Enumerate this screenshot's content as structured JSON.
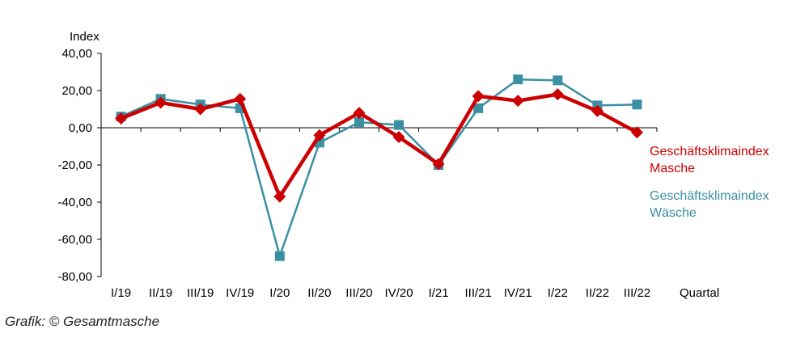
{
  "chart_data": {
    "type": "line",
    "ylabel": "Index",
    "xlabel": "Quartal",
    "ylim": [
      -80,
      40
    ],
    "yticks": [
      "40,00",
      "20,00",
      "0,00",
      "-20,00",
      "-40,00",
      "-60,00",
      "-80,00"
    ],
    "categories": [
      "I/19",
      "II/19",
      "III/19",
      "IV/19",
      "I/20",
      "II/20",
      "III/20",
      "IV/20",
      "I/21",
      "III/21",
      "IV/21",
      "I/22",
      "II/22",
      "III/22"
    ],
    "series": [
      {
        "name": "Geschäftsklimaindex Masche",
        "legend_lines": [
          "Geschäftsklimaindex",
          "Masche"
        ],
        "color": "#cc0000",
        "marker": "diamond",
        "values": [
          5,
          13.5,
          10,
          15.5,
          -37,
          -4,
          8,
          -5,
          -19.5,
          17,
          14.5,
          18,
          9,
          -2.5
        ]
      },
      {
        "name": "Geschäftsklimaindex Wäsche",
        "legend_lines": [
          "Geschäftsklimaindex",
          "Wäsche"
        ],
        "color": "#3a8fa3",
        "marker": "square",
        "values": [
          6,
          15.5,
          12.5,
          10.5,
          -69,
          -8,
          3,
          1.5,
          -20,
          10.5,
          26,
          25.5,
          12,
          12.5
        ]
      }
    ],
    "grid": false,
    "legend_position": "right"
  },
  "credit": "Grafik: © Gesamtmasche"
}
